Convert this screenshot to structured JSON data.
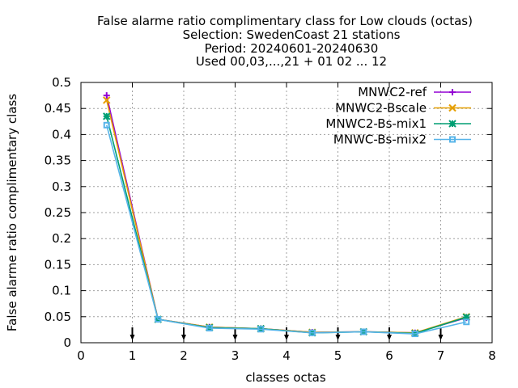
{
  "chart_data": {
    "type": "line",
    "title_lines": [
      "False alarme ratio complimentary class  for Low clouds (octas)",
      "Selection: SwedenCoast     21 stations",
      "Period: 20240601-20240630",
      "Used 00,03,...,21 + 01 02 ... 12"
    ],
    "xlabel": "classes octas",
    "ylabel": "False alarme ratio complimentary class",
    "xlim": [
      0,
      8
    ],
    "ylim": [
      0,
      0.5
    ],
    "xticks": [
      "0",
      "1",
      "2",
      "3",
      "4",
      "5",
      "6",
      "7",
      "8"
    ],
    "yticks": [
      "0",
      "0.05",
      "0.1",
      "0.15",
      "0.2",
      "0.25",
      "0.3",
      "0.35",
      "0.4",
      "0.45",
      "0.5"
    ],
    "grid": true,
    "legend_position": "top-right",
    "x": [
      0.5,
      1.5,
      2.5,
      3.5,
      4.5,
      5.5,
      6.5,
      7.5
    ],
    "series": [
      {
        "name": "MNWC2-ref",
        "color": "#9400d3",
        "marker": "plus",
        "values": [
          0.475,
          0.045,
          0.03,
          0.027,
          0.02,
          0.021,
          0.019,
          0.048
        ]
      },
      {
        "name": "MNWC2-Bscale",
        "color": "#e69f00",
        "marker": "cross",
        "values": [
          0.466,
          0.045,
          0.03,
          0.027,
          0.02,
          0.021,
          0.019,
          0.05
        ]
      },
      {
        "name": "MNWC2-Bs-mix1",
        "color": "#009e73",
        "marker": "star",
        "values": [
          0.435,
          0.045,
          0.029,
          0.027,
          0.019,
          0.021,
          0.018,
          0.049
        ]
      },
      {
        "name": "MNWC-Bs-mix2",
        "color": "#56b4e9",
        "marker": "square",
        "values": [
          0.418,
          0.045,
          0.028,
          0.026,
          0.019,
          0.021,
          0.017,
          0.04
        ]
      }
    ],
    "arrow_markers_x": [
      1,
      2,
      3,
      4,
      5,
      6,
      7
    ]
  }
}
